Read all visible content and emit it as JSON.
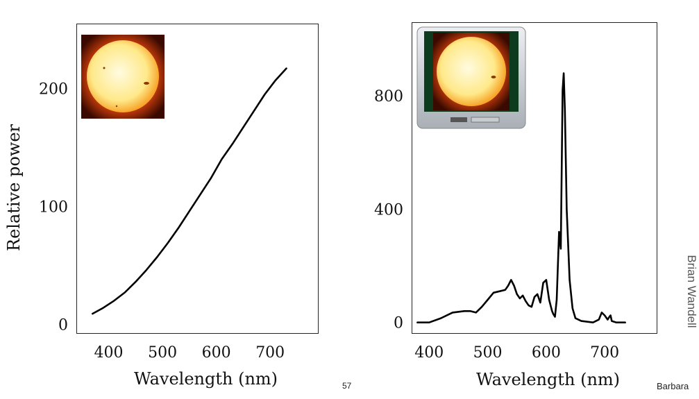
{
  "chart_data": [
    {
      "type": "line",
      "title": "",
      "xlabel": "Wavelength (nm)",
      "ylabel": "Relative power",
      "xlim": [
        340,
        790
      ],
      "ylim": [
        -8,
        255
      ],
      "xticks": [
        400,
        500,
        600,
        700
      ],
      "yticks": [
        0,
        100,
        200
      ],
      "grid": false,
      "inset_image": "sun-photo",
      "series": [
        {
          "color": "#000000",
          "x": [
            370,
            390,
            410,
            430,
            450,
            470,
            490,
            510,
            530,
            550,
            570,
            590,
            610,
            630,
            650,
            670,
            690,
            710,
            730
          ],
          "y": [
            9,
            14,
            20,
            27,
            36,
            46,
            57,
            69,
            82,
            96,
            110,
            124,
            140,
            153,
            167,
            181,
            195,
            207,
            217
          ]
        }
      ]
    },
    {
      "type": "line",
      "title": "",
      "xlabel": "Wavelength (nm)",
      "ylabel": "",
      "xlim": [
        370,
        790
      ],
      "ylim": [
        -40,
        1060
      ],
      "xticks": [
        400,
        500,
        600,
        700
      ],
      "yticks": [
        0,
        400,
        800
      ],
      "grid": false,
      "inset_image": "tv-with-sun-on-screen",
      "series": [
        {
          "color": "#000000",
          "x": [
            380,
            400,
            420,
            440,
            460,
            470,
            480,
            490,
            500,
            510,
            520,
            530,
            535,
            540,
            545,
            550,
            555,
            560,
            565,
            570,
            575,
            580,
            585,
            590,
            595,
            600,
            605,
            610,
            612,
            615,
            618,
            620,
            622,
            625,
            628,
            630,
            632,
            635,
            640,
            645,
            650,
            660,
            680,
            690,
            695,
            700,
            705,
            708,
            710,
            712,
            720,
            735
          ],
          "y": [
            0,
            0,
            15,
            35,
            40,
            40,
            35,
            55,
            80,
            105,
            110,
            115,
            130,
            150,
            130,
            100,
            85,
            95,
            75,
            60,
            55,
            90,
            100,
            70,
            140,
            150,
            80,
            40,
            30,
            20,
            80,
            200,
            320,
            260,
            820,
            880,
            750,
            400,
            150,
            50,
            15,
            5,
            0,
            10,
            35,
            25,
            10,
            20,
            25,
            5,
            0,
            0
          ]
        }
      ]
    }
  ],
  "footer": {
    "page_number": "57",
    "right_text": "Barbara",
    "credit": "Brian Wandell"
  }
}
